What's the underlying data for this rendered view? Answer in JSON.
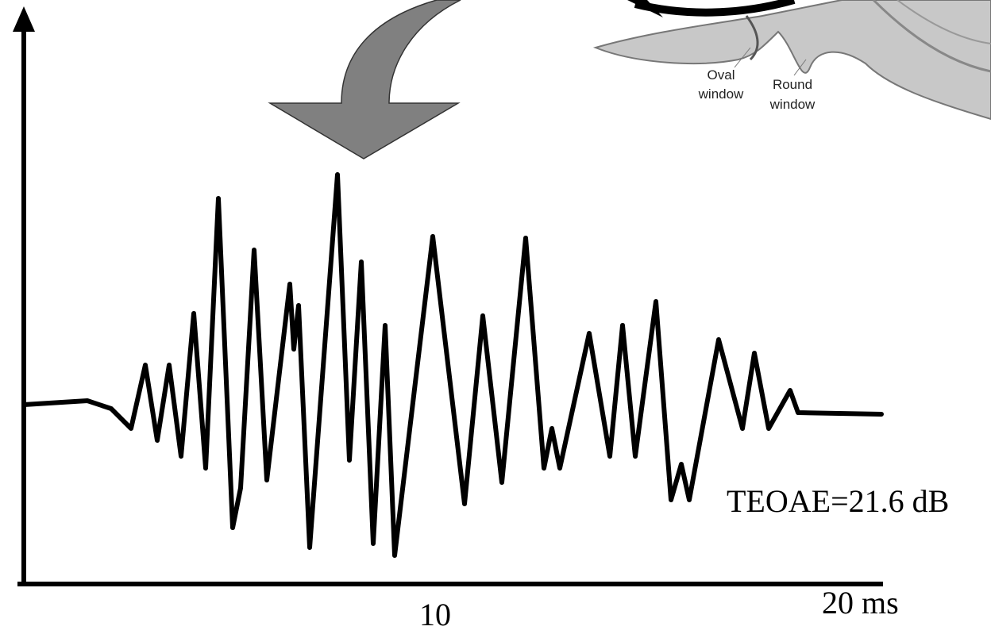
{
  "diagram": {
    "ear_labels": {
      "oval": [
        "Oval",
        "window"
      ],
      "round": [
        "Round",
        "window"
      ]
    },
    "measurement": "TEOAE=21.6 dB",
    "x_axis": {
      "mid_label": "10",
      "end_label": "20 ms"
    }
  }
}
